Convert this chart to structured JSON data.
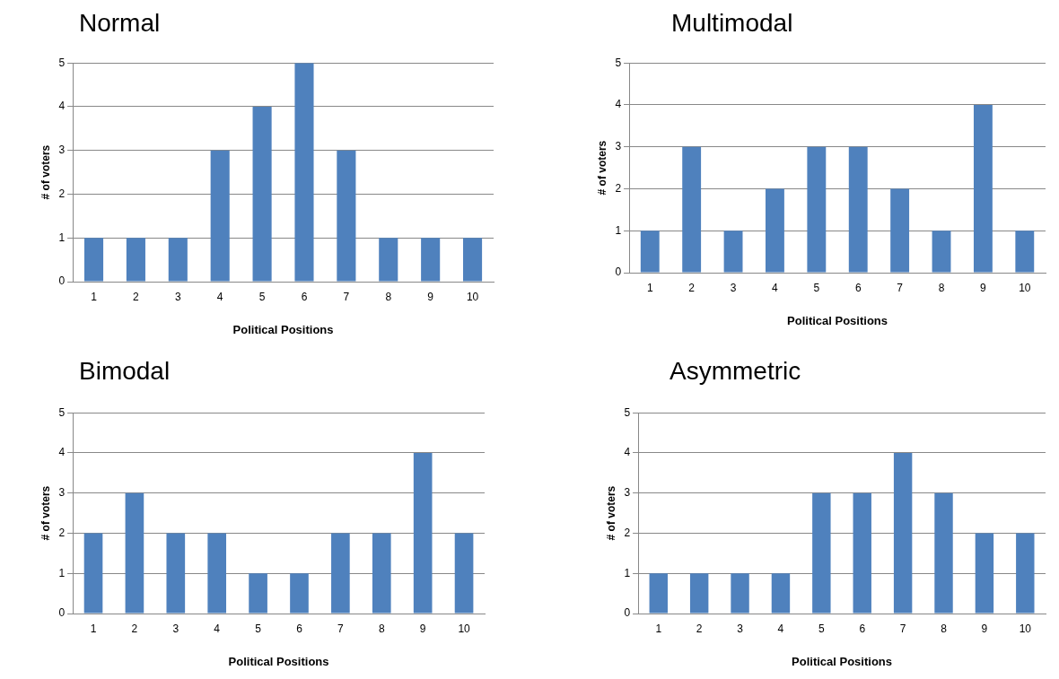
{
  "chart_data": [
    {
      "type": "bar",
      "title": "Normal",
      "xlabel": "Political Positions",
      "ylabel": "# of voters",
      "categories": [
        "1",
        "2",
        "3",
        "4",
        "5",
        "6",
        "7",
        "8",
        "9",
        "10"
      ],
      "values": [
        1,
        1,
        1,
        3,
        4,
        5,
        3,
        1,
        1,
        1
      ],
      "color": "#4f81bd",
      "ylim": [
        0,
        5
      ],
      "yticks": [
        0,
        1,
        2,
        3,
        4,
        5
      ],
      "grid": "y"
    },
    {
      "type": "bar",
      "title": "Multimodal",
      "xlabel": "Political Positions",
      "ylabel": "# of voters",
      "categories": [
        "1",
        "2",
        "3",
        "4",
        "5",
        "6",
        "7",
        "8",
        "9",
        "10"
      ],
      "values": [
        1,
        3,
        1,
        2,
        3,
        3,
        2,
        1,
        4,
        1
      ],
      "color": "#4f81bd",
      "ylim": [
        0,
        5
      ],
      "yticks": [
        0,
        1,
        2,
        3,
        4,
        5
      ],
      "grid": "y"
    },
    {
      "type": "bar",
      "title": "Bimodal",
      "xlabel": "Political Positions",
      "ylabel": "# of voters",
      "categories": [
        "1",
        "2",
        "3",
        "4",
        "5",
        "6",
        "7",
        "8",
        "9",
        "10"
      ],
      "values": [
        2,
        3,
        2,
        2,
        1,
        1,
        2,
        2,
        4,
        2
      ],
      "color": "#4f81bd",
      "ylim": [
        0,
        5
      ],
      "yticks": [
        0,
        1,
        2,
        3,
        4,
        5
      ],
      "grid": "y"
    },
    {
      "type": "bar",
      "title": "Asymmetric",
      "xlabel": "Political Positions",
      "ylabel": "# of voters",
      "categories": [
        "1",
        "2",
        "3",
        "4",
        "5",
        "6",
        "7",
        "8",
        "9",
        "10"
      ],
      "values": [
        1,
        1,
        1,
        1,
        3,
        3,
        4,
        3,
        2,
        2
      ],
      "color": "#4f81bd",
      "ylim": [
        0,
        5
      ],
      "yticks": [
        0,
        1,
        2,
        3,
        4,
        5
      ],
      "grid": "y"
    }
  ]
}
